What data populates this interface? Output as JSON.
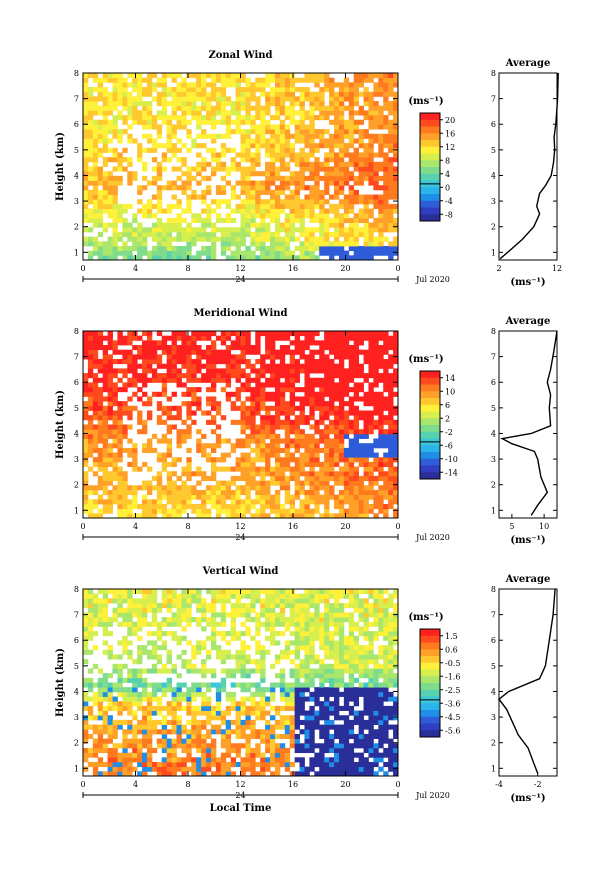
{
  "chart_data": [
    {
      "type": "heatmap",
      "title": "Zonal Wind",
      "ylabel": "Height (km)",
      "xlabel": "",
      "x_ticks": [
        "0",
        "4",
        "8",
        "12",
        "16",
        "20",
        "0"
      ],
      "x_range": [
        0,
        24
      ],
      "y_ticks": [
        "1",
        "2",
        "3",
        "4",
        "5",
        "6",
        "7",
        "8"
      ],
      "ylim": [
        0.7,
        8
      ],
      "day_label": "24",
      "date_label": "Jul 2020",
      "colorbar": {
        "unit": "(ms⁻¹)",
        "ticks": [
          "20",
          "16",
          "12",
          "8",
          "4",
          "0",
          "-4",
          "-8"
        ],
        "range": [
          -10,
          22
        ],
        "colors": [
          "#ff2020",
          "#ff4a1e",
          "#ff7a1e",
          "#ffa028",
          "#ffc82e",
          "#fff03a",
          "#d6ef4e",
          "#a8e66c",
          "#7fdc8c",
          "#57d1ae",
          "#3cc6d8",
          "#2ab4ea",
          "#1f8ee6",
          "#2f5cd8",
          "#303ec2",
          "#2a2e98"
        ]
      },
      "field": {
        "base_by_height": [
          [
            0.8,
            5
          ],
          [
            1.5,
            8
          ],
          [
            2.5,
            10
          ],
          [
            3.5,
            14
          ],
          [
            5,
            12
          ],
          [
            6.5,
            11
          ],
          [
            8,
            12
          ]
        ],
        "late_shift": 5,
        "negative_patch": {
          "x_from": 18,
          "y_to": 1.2,
          "value": -4
        }
      },
      "average_profile": {
        "title": "Average",
        "xlabel": "(ms⁻¹)",
        "x_ticks": [
          "2",
          "12"
        ],
        "xlim": [
          2,
          12
        ],
        "points": [
          [
            2.2,
            0.75
          ],
          [
            3.5,
            1.0
          ],
          [
            6,
            1.5
          ],
          [
            8,
            2.0
          ],
          [
            9,
            2.5
          ],
          [
            8.5,
            2.8
          ],
          [
            9,
            3.3
          ],
          [
            10,
            3.6
          ],
          [
            11,
            4.0
          ],
          [
            11.4,
            4.5
          ],
          [
            11.6,
            5.0
          ],
          [
            11.5,
            5.5
          ],
          [
            11.8,
            6.0
          ],
          [
            12.1,
            7.0
          ],
          [
            12.2,
            8.0
          ]
        ]
      }
    },
    {
      "type": "heatmap",
      "title": "Meridional Wind",
      "ylabel": "Height (km)",
      "xlabel": "",
      "x_ticks": [
        "0",
        "4",
        "8",
        "12",
        "16",
        "20",
        "0"
      ],
      "x_range": [
        0,
        24
      ],
      "y_ticks": [
        "1",
        "2",
        "3",
        "4",
        "5",
        "6",
        "7",
        "8"
      ],
      "ylim": [
        0.7,
        8
      ],
      "day_label": "24",
      "date_label": "Jul 2020",
      "colorbar": {
        "unit": "(ms⁻¹)",
        "ticks": [
          "14",
          "10",
          "6",
          "2",
          "-2",
          "-6",
          "-10",
          "-14"
        ],
        "range": [
          -16,
          16
        ],
        "colors": [
          "#ff2020",
          "#ff4a1e",
          "#ff7a1e",
          "#ffa028",
          "#ffc82e",
          "#fff03a",
          "#d6ef4e",
          "#a8e66c",
          "#7fdc8c",
          "#57d1ae",
          "#3cc6d8",
          "#2ab4ea",
          "#1f8ee6",
          "#2f5cd8",
          "#303ec2",
          "#2a2e98"
        ]
      },
      "field": {
        "base_by_height": [
          [
            0.8,
            6
          ],
          [
            2,
            8
          ],
          [
            3.5,
            9
          ],
          [
            4.5,
            12
          ],
          [
            6,
            14
          ],
          [
            8,
            15
          ]
        ],
        "late_shift": 4,
        "negative_patch": {
          "x_from": 20,
          "y_from": 3,
          "y_to": 4,
          "value": -10
        }
      },
      "average_profile": {
        "title": "Average",
        "xlabel": "(ms⁻¹)",
        "x_ticks": [
          "5",
          "10"
        ],
        "xlim": [
          3,
          12
        ],
        "points": [
          [
            8,
            0.8
          ],
          [
            9,
            1.2
          ],
          [
            10.5,
            1.7
          ],
          [
            9.5,
            2.3
          ],
          [
            9,
            3.0
          ],
          [
            8.5,
            3.3
          ],
          [
            5,
            3.6
          ],
          [
            3.5,
            3.8
          ],
          [
            8,
            4.0
          ],
          [
            11,
            4.3
          ],
          [
            10.8,
            5.0
          ],
          [
            11,
            5.5
          ],
          [
            10.5,
            6.0
          ],
          [
            11,
            6.5
          ],
          [
            11.5,
            7.2
          ],
          [
            12,
            8.0
          ]
        ]
      }
    },
    {
      "type": "heatmap",
      "title": "Vertical Wind",
      "ylabel": "Height (km)",
      "xlabel": "Local Time",
      "x_ticks": [
        "0",
        "4",
        "8",
        "12",
        "16",
        "20",
        "0"
      ],
      "x_range": [
        0,
        24
      ],
      "y_ticks": [
        "1",
        "2",
        "3",
        "4",
        "5",
        "6",
        "7",
        "8"
      ],
      "ylim": [
        0.7,
        8
      ],
      "day_label": "24",
      "date_label": "Jul 2020",
      "colorbar": {
        "unit": "(ms⁻¹)",
        "ticks": [
          "1.5",
          "0.6",
          "-0.5",
          "-1.6",
          "-2.5",
          "-3.6",
          "-4.5",
          "-5.6"
        ],
        "range": [
          -6.4,
          2.0
        ],
        "colors": [
          "#ff2020",
          "#ff4a1e",
          "#ff7a1e",
          "#ffa028",
          "#ffc82e",
          "#fff03a",
          "#d6ef4e",
          "#a8e66c",
          "#7fdc8c",
          "#57d1ae",
          "#3cc6d8",
          "#2ab4ea",
          "#1f8ee6",
          "#2f5cd8",
          "#303ec2",
          "#2a2e98"
        ]
      },
      "field": {
        "base_by_height": [
          [
            0.8,
            0.5
          ],
          [
            2,
            0.2
          ],
          [
            3.5,
            -0.5
          ],
          [
            4.2,
            -2.8
          ],
          [
            5,
            -1.5
          ],
          [
            8,
            -1.2
          ]
        ],
        "dark_block": {
          "x_from": 16,
          "y_to": 4.2,
          "value": -6
        }
      },
      "average_profile": {
        "title": "Average",
        "xlabel": "(ms⁻¹)",
        "x_ticks": [
          "-4",
          "-2"
        ],
        "xlim": [
          -4,
          -1
        ],
        "points": [
          [
            -2.0,
            0.8
          ],
          [
            -2.2,
            1.2
          ],
          [
            -2.5,
            1.8
          ],
          [
            -3.0,
            2.3
          ],
          [
            -3.3,
            2.8
          ],
          [
            -3.6,
            3.3
          ],
          [
            -4.0,
            3.7
          ],
          [
            -3.5,
            4.0
          ],
          [
            -1.9,
            4.5
          ],
          [
            -1.6,
            5.0
          ],
          [
            -1.4,
            6.0
          ],
          [
            -1.2,
            7.0
          ],
          [
            -1.1,
            8.0
          ]
        ]
      }
    }
  ]
}
